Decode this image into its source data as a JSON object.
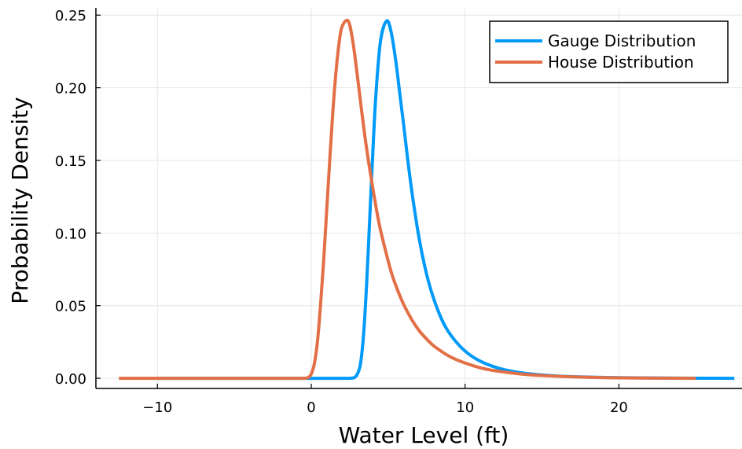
{
  "chart_data": {
    "type": "line",
    "xlabel": "Water Level (ft)",
    "ylabel": "Probability Density",
    "xlim": [
      -14,
      28
    ],
    "ylim": [
      -0.007,
      0.255
    ],
    "x_ticks": [
      -10,
      0,
      10,
      20
    ],
    "x_tick_labels": [
      "−10",
      "0",
      "10",
      "20"
    ],
    "y_ticks": [
      0.0,
      0.05,
      0.1,
      0.15,
      0.2,
      0.25
    ],
    "y_tick_labels": [
      "0.00",
      "0.05",
      "0.10",
      "0.15",
      "0.20",
      "0.25"
    ],
    "grid": true,
    "legend_position": "top-right",
    "series": [
      {
        "name": "Gauge Distribution",
        "color": "#009af9",
        "x": [
          -10,
          0,
          1,
          1.5,
          2,
          2.2,
          2.5,
          2.8,
          3.0,
          3.2,
          3.4,
          3.6,
          3.8,
          4.0,
          4.2,
          4.5,
          4.9,
          5.2,
          5.5,
          5.8,
          6.0,
          6.3,
          6.6,
          7.0,
          7.4,
          7.8,
          8.3,
          8.8,
          9.5,
          10.2,
          11.0,
          12.0,
          13.0,
          14.0,
          15.5,
          17.0,
          19.0,
          21.0,
          24.0,
          27.5
        ],
        "y": [
          0.0,
          0.0,
          0.0,
          0.0,
          0.0,
          0.0,
          0.0,
          0.0005,
          0.003,
          0.01,
          0.03,
          0.065,
          0.11,
          0.155,
          0.195,
          0.232,
          0.246,
          0.238,
          0.218,
          0.192,
          0.175,
          0.148,
          0.124,
          0.097,
          0.076,
          0.06,
          0.045,
          0.034,
          0.024,
          0.017,
          0.0117,
          0.0075,
          0.0049,
          0.0033,
          0.0019,
          0.0011,
          0.0006,
          0.0003,
          0.0001,
          0.0
        ]
      },
      {
        "name": "House Distribution",
        "color": "#e26f46",
        "x": [
          -12.5,
          -5,
          -1.0,
          -0.5,
          -0.2,
          0.0,
          0.2,
          0.4,
          0.6,
          0.8,
          1.0,
          1.2,
          1.4,
          1.6,
          1.8,
          2.0,
          2.4,
          2.7,
          3.0,
          3.3,
          3.6,
          4.0,
          4.4,
          4.8,
          5.2,
          5.6,
          6.0,
          6.5,
          7.0,
          7.5,
          8.0,
          9.0,
          10.0,
          11.0,
          12.0,
          13.5,
          15.0,
          17.0,
          20.0,
          25.0
        ],
        "y": [
          0.0,
          0.0,
          0.0,
          0.0,
          0.0005,
          0.003,
          0.01,
          0.025,
          0.05,
          0.08,
          0.115,
          0.15,
          0.183,
          0.21,
          0.23,
          0.242,
          0.246,
          0.232,
          0.208,
          0.182,
          0.158,
          0.131,
          0.107,
          0.089,
          0.073,
          0.061,
          0.051,
          0.041,
          0.033,
          0.027,
          0.022,
          0.015,
          0.0105,
          0.0072,
          0.0051,
          0.0031,
          0.0019,
          0.001,
          0.0003,
          0.0
        ]
      }
    ]
  }
}
